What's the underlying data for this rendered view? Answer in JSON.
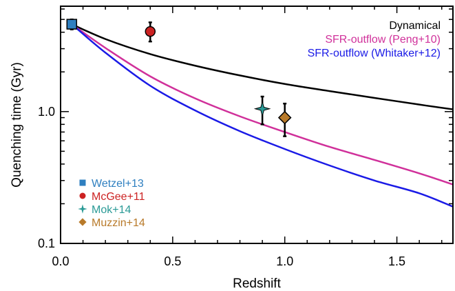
{
  "chart_data": {
    "type": "line",
    "xlabel": "Redshift",
    "ylabel": "Quenching time (Gyr)",
    "xlim": [
      0,
      1.75
    ],
    "ylim": [
      0.1,
      6.3
    ],
    "yscale": "log",
    "xticks": [
      {
        "value": 0.0,
        "label": "0.0"
      },
      {
        "value": 0.5,
        "label": "0.5"
      },
      {
        "value": 1.0,
        "label": "1.0"
      },
      {
        "value": 1.5,
        "label": "1.5"
      }
    ],
    "yticks": [
      {
        "value": 0.1,
        "label": "0.1"
      },
      {
        "value": 1.0,
        "label": "1.0"
      }
    ],
    "grid": false,
    "series": [
      {
        "name": "Dynamical",
        "color": "#000000",
        "x": [
          0.05,
          0.2,
          0.4,
          0.6,
          0.8,
          1.0,
          1.2,
          1.4,
          1.6,
          1.75
        ],
        "y": [
          4.6,
          3.55,
          2.73,
          2.23,
          1.88,
          1.62,
          1.43,
          1.27,
          1.13,
          1.04
        ]
      },
      {
        "name": "SFR-outflow (Peng+10)",
        "color": "#d0309a",
        "x": [
          0.05,
          0.2,
          0.4,
          0.6,
          0.8,
          1.0,
          1.2,
          1.4,
          1.6,
          1.75
        ],
        "y": [
          4.6,
          3.04,
          1.85,
          1.26,
          0.92,
          0.7,
          0.54,
          0.43,
          0.34,
          0.28
        ]
      },
      {
        "name": "SFR-outflow (Whitaker+12)",
        "color": "#1a1ae6",
        "x": [
          0.05,
          0.2,
          0.4,
          0.6,
          0.8,
          1.0,
          1.2,
          1.4,
          1.6,
          1.75
        ],
        "y": [
          4.6,
          2.8,
          1.57,
          1.02,
          0.71,
          0.52,
          0.39,
          0.3,
          0.24,
          0.19
        ]
      }
    ],
    "points": [
      {
        "name": "Wetzel+13",
        "marker": "square",
        "color": "#2e7fc0",
        "x": 0.05,
        "y": 4.6,
        "yerr": [
          4.2,
          5.0
        ]
      },
      {
        "name": "McGee+11",
        "marker": "circle",
        "color": "#cc2222",
        "x": 0.4,
        "y": 4.05,
        "yerr": [
          3.4,
          4.75
        ]
      },
      {
        "name": "Mok+14",
        "marker": "star",
        "color": "#2a9a96",
        "x": 0.9,
        "y": 1.05,
        "yerr": [
          0.8,
          1.3
        ]
      },
      {
        "name": "Muzzin+14",
        "marker": "diamond",
        "color": "#b87a2a",
        "x": 1.0,
        "y": 0.9,
        "yerr": [
          0.65,
          1.15
        ]
      }
    ],
    "line_legend_position": "top-right",
    "point_legend_position": "bottom-left"
  }
}
